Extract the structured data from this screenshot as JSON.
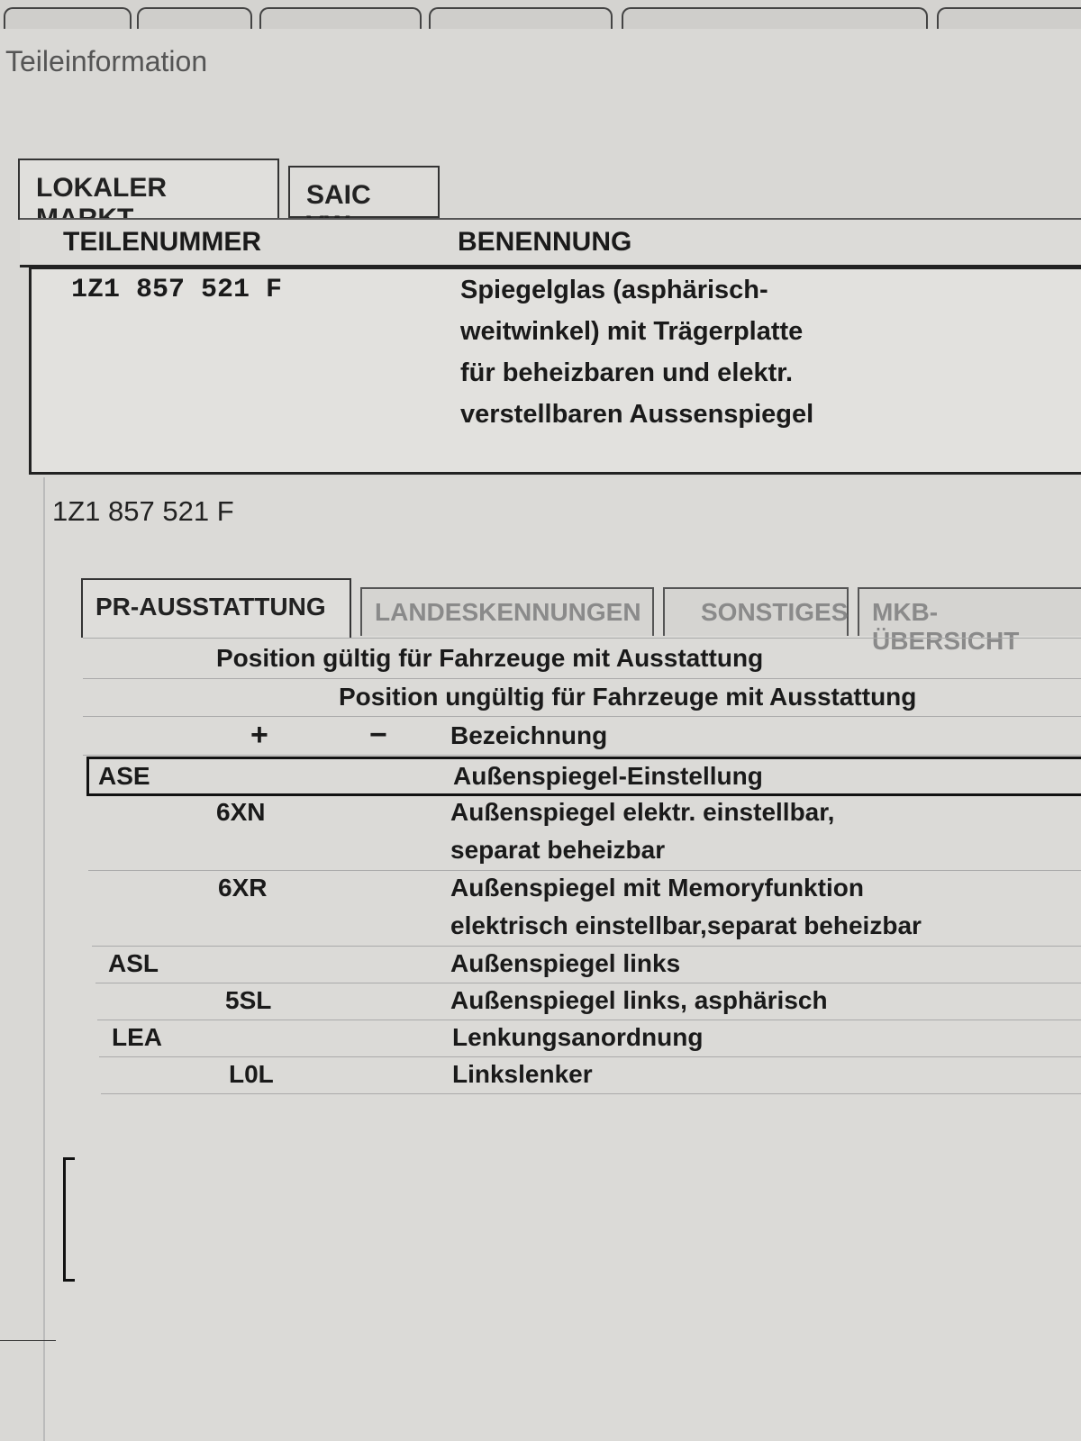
{
  "window": {
    "title": "Teileinformation"
  },
  "market_tabs": [
    {
      "label": "LOKALER MARKT",
      "active": true
    },
    {
      "label": "SAIC VW",
      "active": false
    }
  ],
  "parts_table": {
    "headers": [
      "TEILENUMMER",
      "BENENNUNG"
    ],
    "rows": [
      {
        "part_number": "1Z1 857 521 F",
        "description_lines": [
          "Spiegelglas (asphärisch-",
          "weitwinkel) mit Trägerplatte",
          "für beheizbaren und elektr.",
          "verstellbaren Aussenspiegel"
        ]
      }
    ]
  },
  "detail": {
    "part_number": "1Z1 857 521 F",
    "tabs": [
      {
        "label": "PR-AUSSTATTUNG",
        "active": true
      },
      {
        "label": "LANDESKENNUNGEN"
      },
      {
        "label": "SONSTIGES"
      },
      {
        "label": "MKB-ÜBERSICHT"
      }
    ],
    "header_valid": "Position gültig für Fahrzeuge mit Ausstattung",
    "header_invalid": "Position ungültig für Fahrzeuge mit Ausstattung",
    "col_plus": "+",
    "col_minus": "−",
    "col_desc": "Bezeichnung",
    "rows": [
      {
        "family": "ASE",
        "plus": "",
        "lines": [
          "Außenspiegel-Einstellung"
        ],
        "selected": true
      },
      {
        "family": "",
        "plus": "6XN",
        "lines": [
          "Außenspiegel elektr. einstellbar,",
          "separat beheizbar"
        ]
      },
      {
        "family": "",
        "plus": "6XR",
        "lines": [
          "Außenspiegel mit Memoryfunktion",
          "elektrisch einstellbar,separat beheizbar"
        ]
      },
      {
        "family": "ASL",
        "plus": "",
        "lines": [
          "Außenspiegel links"
        ]
      },
      {
        "family": "",
        "plus": "5SL",
        "lines": [
          "Außenspiegel links, asphärisch"
        ]
      },
      {
        "family": "LEA",
        "plus": "",
        "lines": [
          "Lenkungsanordnung"
        ]
      },
      {
        "family": "",
        "plus": "L0L",
        "lines": [
          "Linkslenker"
        ]
      }
    ]
  }
}
